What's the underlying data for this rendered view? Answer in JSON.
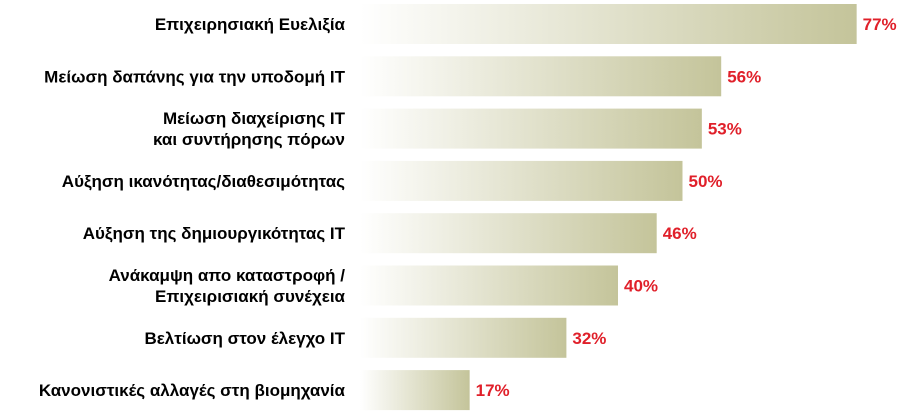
{
  "chart_data": {
    "type": "bar",
    "orientation": "horizontal",
    "categories": [
      [
        "Επιχειρησιακή Ευελιξία"
      ],
      [
        "Μείωση δαπάνης για την υποδομή ΙΤ"
      ],
      [
        "Μείωση διαχείρισης ΙΤ",
        "και συντήρησης πόρων"
      ],
      [
        "Αύξηση ικανότητας/διαθεσιμότητας"
      ],
      [
        "Αύξηση της δημιουργικότητας ΙΤ"
      ],
      [
        "Ανάκαμψη απο καταστροφή /",
        "Επιχειρισιακή συνέχεια"
      ],
      [
        "Βελτίωση στον έλεγχο ΙΤ"
      ],
      [
        "Κανονιστικές αλλαγές στη βιομηχανία"
      ]
    ],
    "values": [
      77,
      56,
      53,
      50,
      46,
      40,
      32,
      17
    ],
    "value_labels": [
      "77%",
      "56%",
      "53%",
      "50%",
      "46%",
      "40%",
      "32%",
      "17%"
    ],
    "xlim": [
      0,
      100
    ],
    "grid": false,
    "bar_gradient": [
      "#ffffff",
      "#c4c49a"
    ],
    "value_color": "#e0202a",
    "label_color": "#000000"
  }
}
